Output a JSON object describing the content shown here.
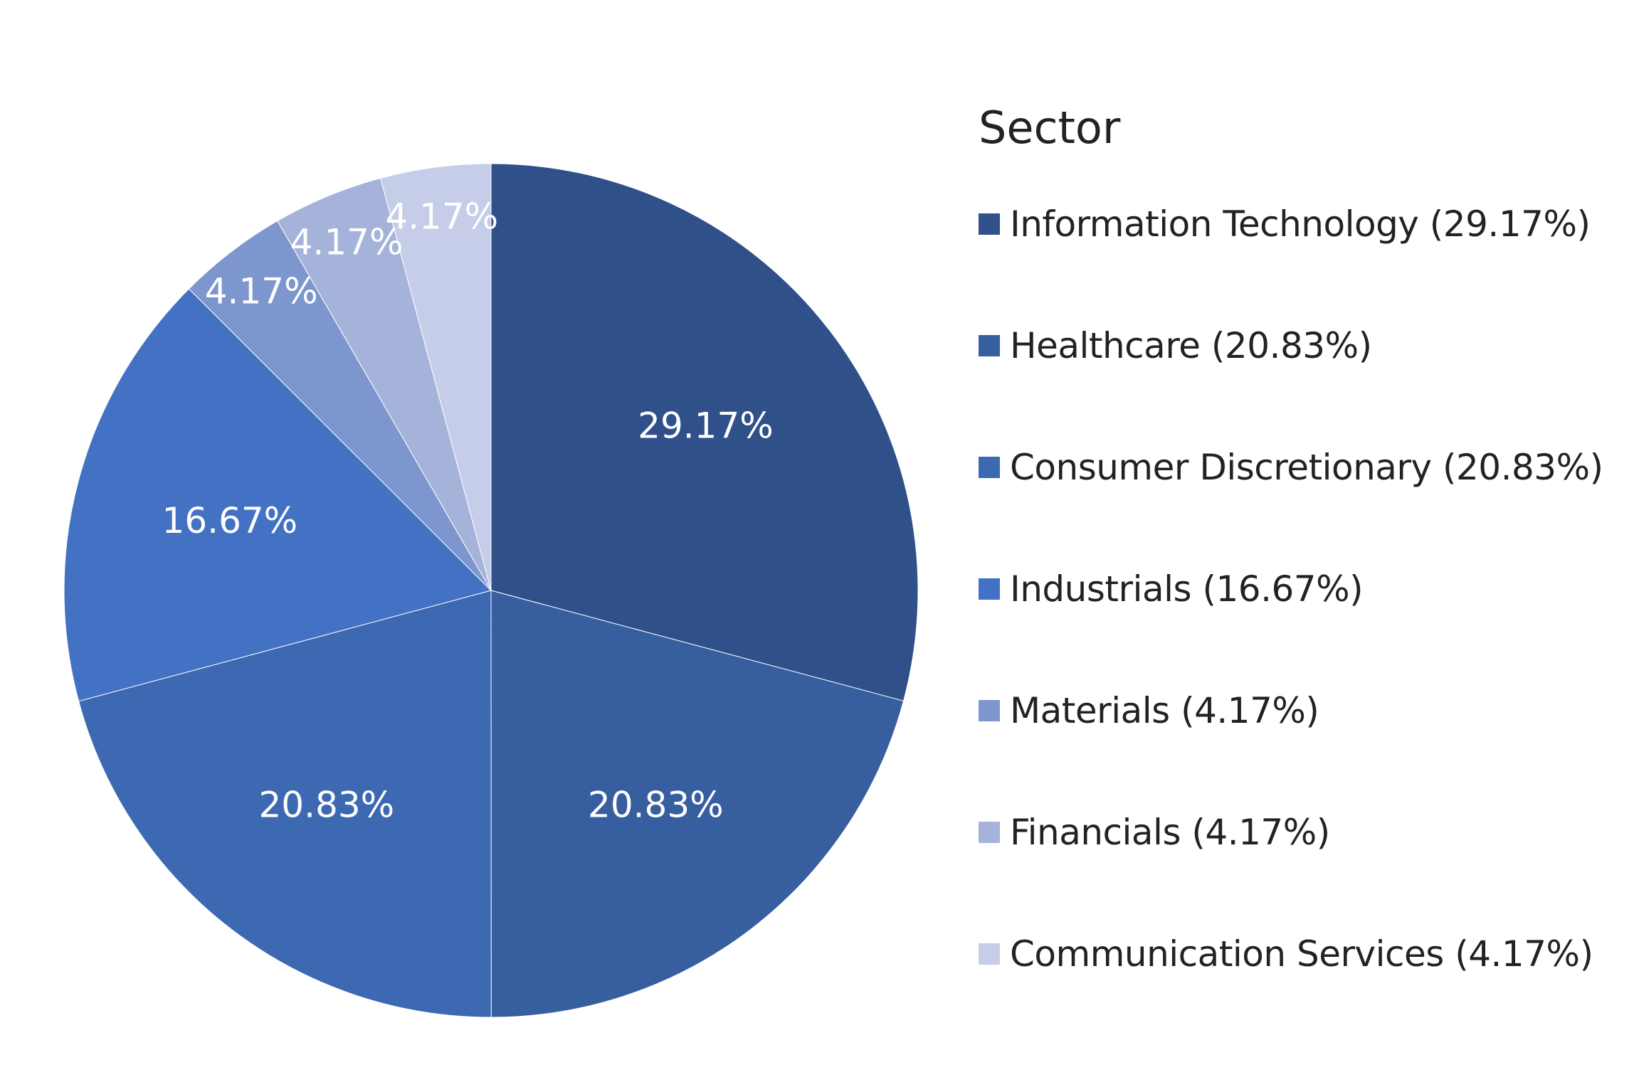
{
  "chart_data": {
    "type": "pie",
    "legend_title": "Sector",
    "legend_position": "right",
    "start_angle_deg": 0,
    "direction": "clockwise",
    "slices": [
      {
        "name": "Information Technology",
        "value": 29.17,
        "label": "29.17%",
        "legend": "Information Technology (29.17%)",
        "color": "#2f5089"
      },
      {
        "name": "Healthcare",
        "value": 20.83,
        "label": "20.83%",
        "legend": "Healthcare (20.83%)",
        "color": "#375e9f"
      },
      {
        "name": "Consumer Discretionary",
        "value": 20.83,
        "label": "20.83%",
        "legend": "Consumer Discretionary (20.83%)",
        "color": "#3c69b2"
      },
      {
        "name": "Industrials",
        "value": 16.67,
        "label": "16.67%",
        "legend": "Industrials (16.67%)",
        "color": "#4372c4"
      },
      {
        "name": "Materials",
        "value": 4.17,
        "label": "4.17%",
        "legend": "Materials (4.17%)",
        "color": "#7d96cd"
      },
      {
        "name": "Financials",
        "value": 4.17,
        "label": "4.17%",
        "legend": "Financials (4.17%)",
        "color": "#a5b3da"
      },
      {
        "name": "Communication Services",
        "value": 4.17,
        "label": "4.17%",
        "legend": "Communication Services (4.17%)",
        "color": "#c5cde8"
      }
    ]
  }
}
